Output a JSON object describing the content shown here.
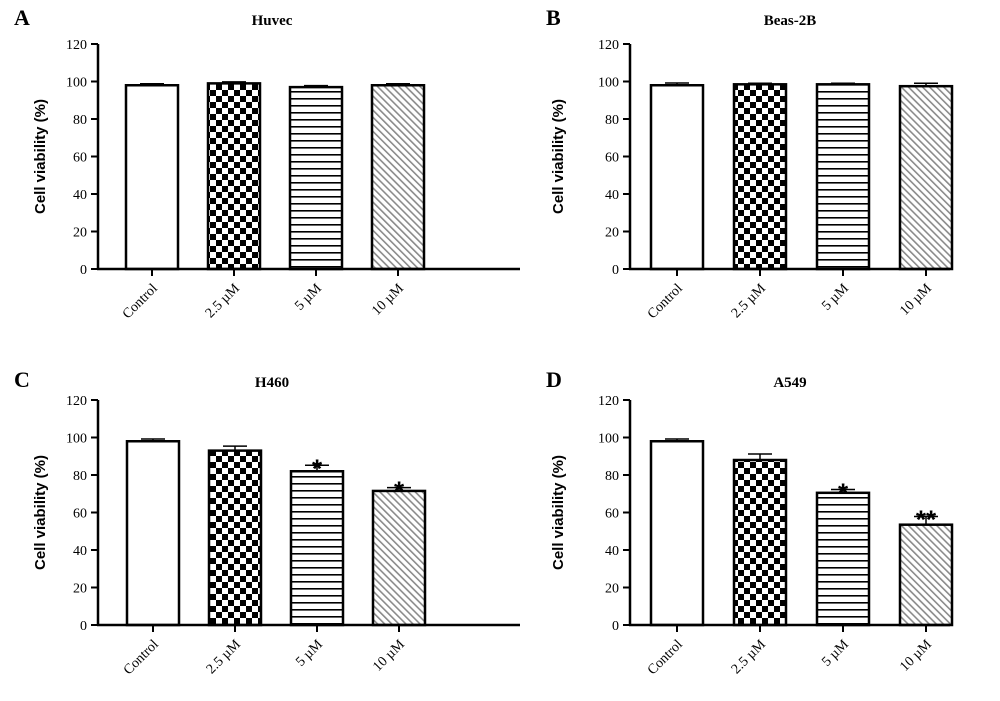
{
  "chart_data": [
    {
      "type": "bar",
      "panel": "A",
      "title": "Huvec",
      "ylabel": "Cell viability (%)",
      "xlabel": "",
      "categories": [
        "Control",
        "2.5 µM",
        "5 µM",
        "10 µM"
      ],
      "values": [
        98,
        99,
        97,
        98
      ],
      "errors": [
        0.8,
        0.8,
        0.8,
        0.8
      ],
      "significance": [
        "",
        "",
        "",
        ""
      ],
      "ylim": [
        0,
        120
      ],
      "yticks": [
        0,
        20,
        40,
        60,
        80,
        100,
        120
      ],
      "patterns": [
        "plain",
        "checker",
        "hstripes",
        "diagonal"
      ]
    },
    {
      "type": "bar",
      "panel": "B",
      "title": "Beas-2B",
      "ylabel": "Cell viability (%)",
      "xlabel": "",
      "categories": [
        "Control",
        "2.5 µM",
        "5 µM",
        "10 µM"
      ],
      "values": [
        98,
        98.5,
        98.5,
        97.5
      ],
      "errors": [
        1.2,
        0.6,
        0.6,
        1.6
      ],
      "significance": [
        "",
        "",
        "",
        ""
      ],
      "ylim": [
        0,
        120
      ],
      "yticks": [
        0,
        20,
        40,
        60,
        80,
        100,
        120
      ],
      "patterns": [
        "plain",
        "checker",
        "hstripes",
        "diagonal"
      ]
    },
    {
      "type": "bar",
      "panel": "C",
      "title": "H460",
      "ylabel": "Cell viability (%)",
      "xlabel": "",
      "categories": [
        "Control",
        "2.5 µM",
        "5 µM",
        "10 µM"
      ],
      "values": [
        98,
        93,
        82,
        71.5
      ],
      "errors": [
        1.2,
        2.4,
        3.2,
        1.8
      ],
      "significance": [
        "",
        "",
        "*",
        "*"
      ],
      "ylim": [
        0,
        120
      ],
      "yticks": [
        0,
        20,
        40,
        60,
        80,
        100,
        120
      ],
      "patterns": [
        "plain",
        "checker",
        "hstripes",
        "diagonal"
      ]
    },
    {
      "type": "bar",
      "panel": "D",
      "title": "A549",
      "ylabel": "Cell viability (%)",
      "xlabel": "",
      "categories": [
        "Control",
        "2.5 µM",
        "5 µM",
        "10 µM"
      ],
      "values": [
        98,
        88,
        70.5,
        53.5
      ],
      "errors": [
        1.2,
        3.2,
        1.8,
        4.4
      ],
      "significance": [
        "",
        "",
        "*",
        "**"
      ],
      "ylim": [
        0,
        120
      ],
      "yticks": [
        0,
        20,
        40,
        60,
        80,
        100,
        120
      ],
      "patterns": [
        "plain",
        "checker",
        "hstripes",
        "diagonal"
      ]
    }
  ]
}
